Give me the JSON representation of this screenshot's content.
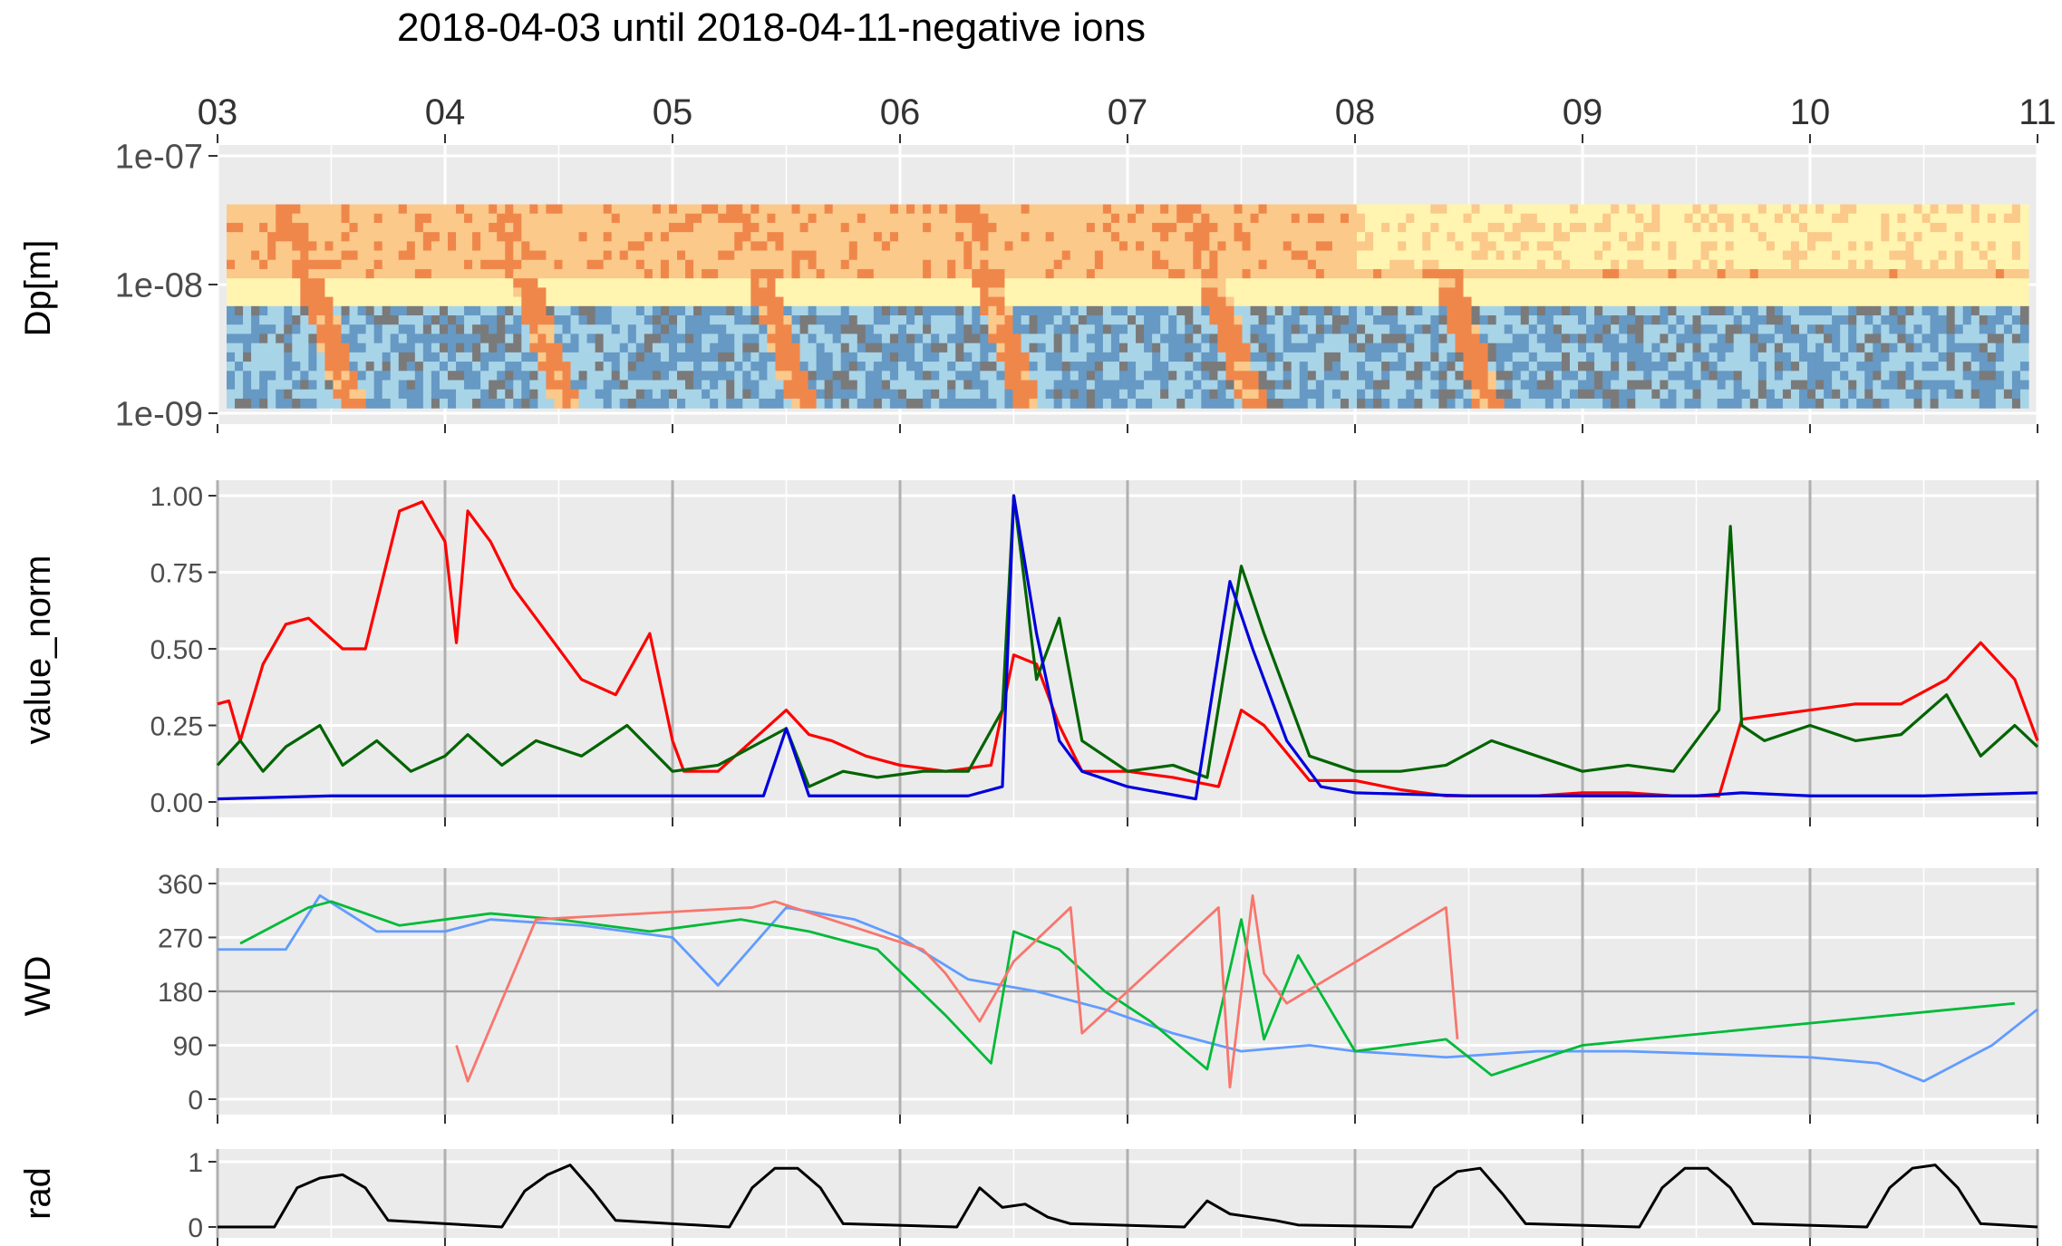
{
  "title": "2018-04-03 until 2018-04-11-negative ions",
  "x_ticks": [
    "03",
    "04",
    "05",
    "06",
    "07",
    "08",
    "09",
    "10",
    "11"
  ],
  "chart_data": [
    {
      "type": "heatmap",
      "ylabel": "Dp[m]",
      "y_scale": "log",
      "y_ticks": [
        "1e-07",
        "1e-08",
        "1e-09"
      ],
      "ylim": [
        1e-09,
        1e-07
      ],
      "data_range_dp": [
        1.1e-09,
        4.2e-08
      ],
      "xlim_days": [
        "2018-04-03",
        "2018-04-11"
      ],
      "colors": [
        "#f0874a",
        "#fbc98a",
        "#fff5b0",
        "#a8d4e8",
        "#6699c4",
        "#7a7a7a"
      ],
      "events": [
        {
          "day": "2018-04-03",
          "x_center": 3.4,
          "note": "growth band"
        },
        {
          "day": "2018-04-04",
          "x_center": 4.35
        },
        {
          "day": "2018-04-05",
          "x_center": 5.4
        },
        {
          "day": "2018-04-06",
          "x_center": 6.4
        },
        {
          "day": "2018-04-07",
          "x_center": 7.4
        },
        {
          "day": "2018-04-08",
          "x_center": 8.45
        }
      ]
    },
    {
      "type": "line",
      "ylabel": "value_norm",
      "ylim": [
        0,
        1
      ],
      "y_ticks": [
        "1.00",
        "0.75",
        "0.50",
        "0.25",
        "0.00"
      ],
      "series": [
        {
          "color": "#ff0000",
          "x": [
            3.0,
            3.05,
            3.1,
            3.2,
            3.3,
            3.4,
            3.55,
            3.65,
            3.8,
            3.9,
            4.0,
            4.05,
            4.1,
            4.2,
            4.3,
            4.4,
            4.6,
            4.75,
            4.9,
            5.0,
            5.05,
            5.2,
            5.35,
            5.5,
            5.6,
            5.7,
            5.85,
            6.0,
            6.2,
            6.4,
            6.5,
            6.6,
            6.7,
            6.8,
            7.0,
            7.2,
            7.4,
            7.5,
            7.6,
            7.8,
            8.0,
            8.2,
            8.4,
            8.6,
            8.8,
            9.0,
            9.2,
            9.4,
            9.6,
            9.7,
            9.8,
            10.0,
            10.2,
            10.4,
            10.6,
            10.75,
            10.9,
            11.0
          ],
          "values": [
            0.32,
            0.33,
            0.2,
            0.45,
            0.58,
            0.6,
            0.5,
            0.5,
            0.95,
            0.98,
            0.85,
            0.52,
            0.95,
            0.85,
            0.7,
            0.6,
            0.4,
            0.35,
            0.55,
            0.2,
            0.1,
            0.1,
            0.2,
            0.3,
            0.22,
            0.2,
            0.15,
            0.12,
            0.1,
            0.12,
            0.48,
            0.45,
            0.25,
            0.1,
            0.1,
            0.08,
            0.05,
            0.3,
            0.25,
            0.07,
            0.07,
            0.04,
            0.02,
            0.02,
            0.02,
            0.03,
            0.03,
            0.02,
            0.02,
            0.27,
            0.28,
            0.3,
            0.32,
            0.32,
            0.4,
            0.52,
            0.4,
            0.2
          ]
        },
        {
          "color": "#006400",
          "x": [
            3.0,
            3.1,
            3.2,
            3.3,
            3.45,
            3.55,
            3.7,
            3.85,
            4.0,
            4.1,
            4.25,
            4.4,
            4.6,
            4.8,
            5.0,
            5.2,
            5.4,
            5.5,
            5.6,
            5.75,
            5.9,
            6.1,
            6.3,
            6.45,
            6.5,
            6.6,
            6.7,
            6.8,
            7.0,
            7.2,
            7.35,
            7.5,
            7.6,
            7.7,
            7.8,
            8.0,
            8.2,
            8.4,
            8.6,
            8.8,
            9.0,
            9.2,
            9.4,
            9.6,
            9.65,
            9.7,
            9.8,
            10.0,
            10.2,
            10.4,
            10.6,
            10.75,
            10.9,
            11.0
          ],
          "values": [
            0.12,
            0.2,
            0.1,
            0.18,
            0.25,
            0.12,
            0.2,
            0.1,
            0.15,
            0.22,
            0.12,
            0.2,
            0.15,
            0.25,
            0.1,
            0.12,
            0.2,
            0.24,
            0.05,
            0.1,
            0.08,
            0.1,
            0.1,
            0.3,
            1.0,
            0.4,
            0.6,
            0.2,
            0.1,
            0.12,
            0.08,
            0.77,
            0.55,
            0.35,
            0.15,
            0.1,
            0.1,
            0.12,
            0.2,
            0.15,
            0.1,
            0.12,
            0.1,
            0.3,
            0.9,
            0.25,
            0.2,
            0.25,
            0.2,
            0.22,
            0.35,
            0.15,
            0.25,
            0.18
          ]
        },
        {
          "color": "#0000dd",
          "x": [
            3.0,
            3.5,
            4.0,
            4.5,
            5.0,
            5.4,
            5.5,
            5.6,
            6.0,
            6.3,
            6.45,
            6.5,
            6.6,
            6.7,
            6.8,
            7.0,
            7.3,
            7.45,
            7.55,
            7.7,
            7.85,
            8.0,
            8.5,
            9.0,
            9.5,
            9.7,
            10.0,
            10.5,
            11.0
          ],
          "values": [
            0.01,
            0.02,
            0.02,
            0.02,
            0.02,
            0.02,
            0.24,
            0.02,
            0.02,
            0.02,
            0.05,
            1.0,
            0.55,
            0.2,
            0.1,
            0.05,
            0.01,
            0.72,
            0.5,
            0.2,
            0.05,
            0.03,
            0.02,
            0.02,
            0.02,
            0.03,
            0.02,
            0.02,
            0.03
          ]
        }
      ]
    },
    {
      "type": "line",
      "ylabel": "WD",
      "ylim": [
        0,
        360
      ],
      "y_ticks": [
        "360",
        "270",
        "180",
        "90",
        "0"
      ],
      "hline": 180,
      "colors": [
        "#619cff",
        "#00ba38",
        "#f8766d"
      ],
      "series": [
        {
          "color": "#619cff",
          "x": [
            3.0,
            3.3,
            3.45,
            3.7,
            4.0,
            4.2,
            4.6,
            5.0,
            5.2,
            5.5,
            5.8,
            6.0,
            6.3,
            6.6,
            6.9,
            7.2,
            7.5,
            7.8,
            8.0,
            8.4,
            8.8,
            9.2,
            9.6,
            10.0,
            10.3,
            10.5,
            10.8,
            11.0
          ],
          "values": [
            250,
            250,
            340,
            280,
            280,
            300,
            290,
            270,
            190,
            320,
            300,
            270,
            200,
            180,
            150,
            110,
            80,
            90,
            80,
            70,
            80,
            80,
            75,
            70,
            60,
            30,
            90,
            150
          ]
        },
        {
          "color": "#00ba38",
          "x": [
            3.1,
            3.4,
            3.5,
            3.8,
            4.2,
            4.5,
            4.9,
            5.3,
            5.6,
            5.9,
            6.2,
            6.4,
            6.5,
            6.7,
            6.9,
            7.1,
            7.35,
            7.5,
            7.6,
            7.75,
            8.0,
            8.4,
            8.6,
            9.0,
            10.9
          ],
          "values": [
            260,
            320,
            330,
            290,
            310,
            300,
            280,
            300,
            280,
            250,
            140,
            60,
            280,
            250,
            180,
            130,
            50,
            300,
            100,
            240,
            80,
            100,
            40,
            90,
            160
          ]
        },
        {
          "color": "#f8766d",
          "x": [
            4.05,
            4.1,
            4.2,
            4.4,
            5.35,
            5.45,
            6.1,
            6.2,
            6.35,
            6.5,
            6.75,
            6.8,
            7.4,
            7.45,
            7.55,
            7.6,
            7.7,
            8.4,
            8.45
          ],
          "values": [
            90,
            30,
            120,
            300,
            320,
            330,
            250,
            210,
            130,
            230,
            320,
            110,
            320,
            20,
            340,
            210,
            160,
            320,
            100
          ]
        }
      ]
    },
    {
      "type": "line",
      "ylabel": "rad",
      "ylim": [
        0,
        1
      ],
      "y_ticks": [
        "1",
        "0"
      ],
      "series": [
        {
          "color": "#000000",
          "x": [
            3.0,
            3.25,
            3.35,
            3.45,
            3.55,
            3.65,
            3.75,
            4.25,
            4.35,
            4.45,
            4.55,
            4.65,
            4.75,
            5.25,
            5.35,
            5.45,
            5.55,
            5.65,
            5.75,
            6.25,
            6.35,
            6.45,
            6.55,
            6.65,
            6.75,
            7.25,
            7.35,
            7.45,
            7.55,
            7.65,
            7.75,
            8.25,
            8.35,
            8.45,
            8.55,
            8.65,
            8.75,
            9.25,
            9.35,
            9.45,
            9.55,
            9.65,
            9.75,
            10.25,
            10.35,
            10.45,
            10.55,
            10.65,
            10.75,
            11.0
          ],
          "values": [
            0,
            0,
            0.6,
            0.75,
            0.8,
            0.6,
            0.1,
            0,
            0.55,
            0.8,
            0.95,
            0.55,
            0.1,
            0,
            0.6,
            0.9,
            0.9,
            0.6,
            0.05,
            0,
            0.6,
            0.3,
            0.35,
            0.15,
            0.05,
            0,
            0.4,
            0.2,
            0.15,
            0.1,
            0.03,
            0,
            0.6,
            0.85,
            0.9,
            0.5,
            0.05,
            0,
            0.6,
            0.9,
            0.9,
            0.6,
            0.05,
            0,
            0.6,
            0.9,
            0.95,
            0.6,
            0.05,
            0
          ]
        }
      ]
    }
  ]
}
